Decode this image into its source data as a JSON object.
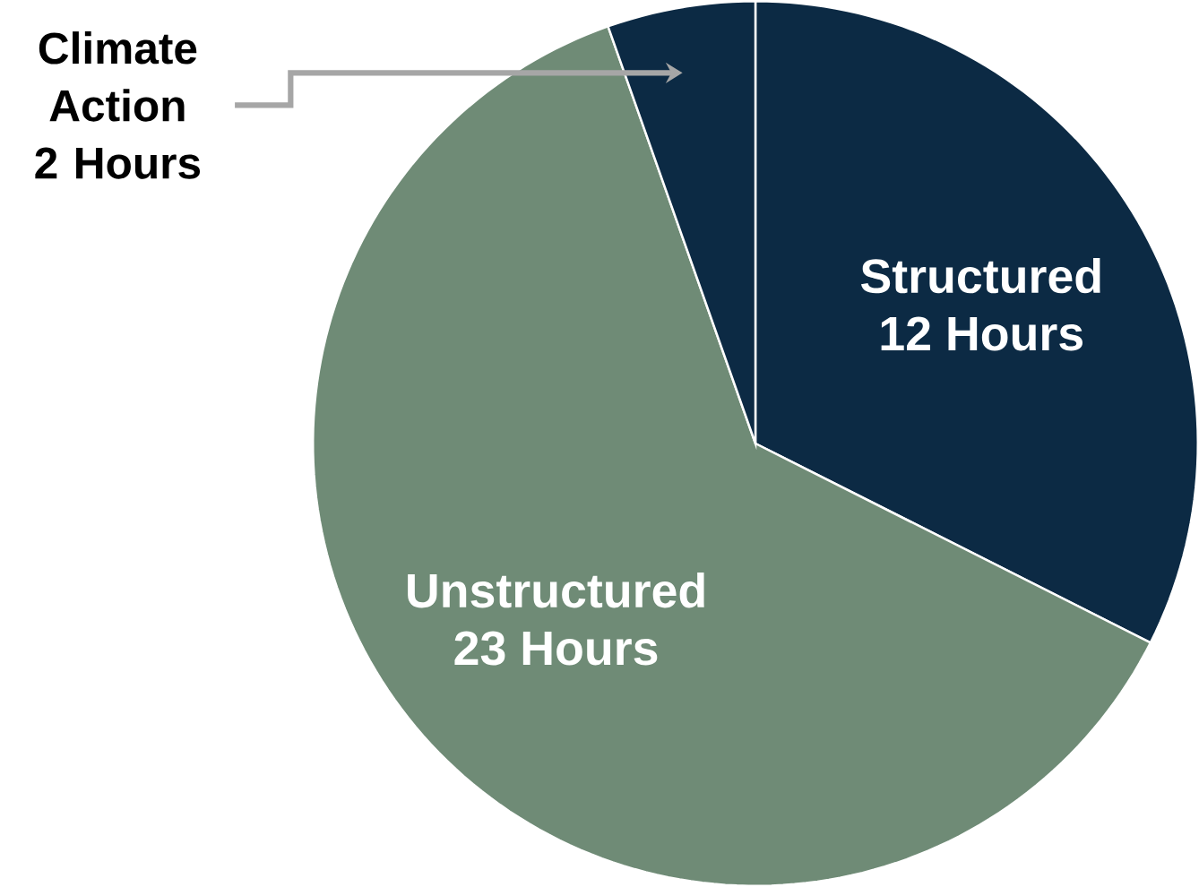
{
  "chart_data": {
    "type": "pie",
    "categories": [
      "Structured",
      "Unstructured",
      "Climate Action"
    ],
    "values": [
      12,
      23,
      2
    ],
    "value_labels": [
      "12 Hours",
      "23 Hours",
      "2 Hours"
    ],
    "colors": [
      "#0c2a44",
      "#6f8b76",
      "#0c2a44"
    ]
  }
}
